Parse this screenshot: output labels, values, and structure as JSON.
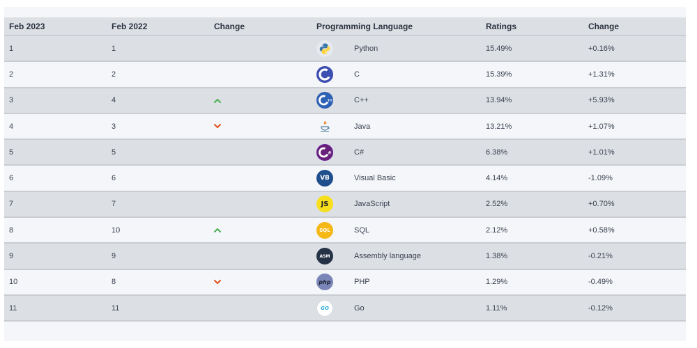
{
  "table": {
    "headers": [
      "Feb 2023",
      "Feb 2022",
      "Change",
      "Programming Language",
      "Ratings",
      "Change"
    ],
    "rows": [
      {
        "feb2023": "1",
        "feb2022": "1",
        "change_icon": "none",
        "language": "Python",
        "logo_icon": "python-logo-icon",
        "ratings": "15.49%",
        "change": "+0.16%"
      },
      {
        "feb2023": "2",
        "feb2022": "2",
        "change_icon": "none",
        "language": "C",
        "logo_icon": "c-logo-icon",
        "ratings": "15.39%",
        "change": "+1.31%"
      },
      {
        "feb2023": "3",
        "feb2022": "4",
        "change_icon": "chevron-up-icon",
        "language": "C++",
        "logo_icon": "cpp-logo-icon",
        "ratings": "13.94%",
        "change": "+5.93%"
      },
      {
        "feb2023": "4",
        "feb2022": "3",
        "change_icon": "chevron-down-icon",
        "language": "Java",
        "logo_icon": "java-logo-icon",
        "ratings": "13.21%",
        "change": "+1.07%"
      },
      {
        "feb2023": "5",
        "feb2022": "5",
        "change_icon": "none",
        "language": "C#",
        "logo_icon": "csharp-logo-icon",
        "ratings": "6.38%",
        "change": "+1.01%"
      },
      {
        "feb2023": "6",
        "feb2022": "6",
        "change_icon": "none",
        "language": "Visual Basic",
        "logo_icon": "vb-logo-icon",
        "logo_text": "VB",
        "ratings": "4.14%",
        "change": "-1.09%"
      },
      {
        "feb2023": "7",
        "feb2022": "7",
        "change_icon": "none",
        "language": "JavaScript",
        "logo_icon": "js-logo-icon",
        "logo_text": "JS",
        "ratings": "2.52%",
        "change": "+0.70%"
      },
      {
        "feb2023": "8",
        "feb2022": "10",
        "change_icon": "chevron-up-icon",
        "language": "SQL",
        "logo_icon": "sql-logo-icon",
        "logo_text": "SQL",
        "ratings": "2.12%",
        "change": "+0.58%"
      },
      {
        "feb2023": "9",
        "feb2022": "9",
        "change_icon": "none",
        "language": "Assembly language",
        "logo_icon": "asm-logo-icon",
        "logo_text": "ASM",
        "ratings": "1.38%",
        "change": "-0.21%"
      },
      {
        "feb2023": "10",
        "feb2022": "8",
        "change_icon": "chevron-down-icon",
        "language": "PHP",
        "logo_icon": "php-logo-icon",
        "logo_text": "php",
        "ratings": "1.29%",
        "change": "-0.49%"
      },
      {
        "feb2023": "11",
        "feb2022": "11",
        "change_icon": "none",
        "language": "Go",
        "logo_icon": "go-logo-icon",
        "logo_text": "GO",
        "ratings": "1.11%",
        "change": "-0.12%"
      }
    ]
  },
  "colors": {
    "up": "#4caf50",
    "down": "#e0531f",
    "header_bg": "#dcdfe4",
    "row_alt_bg": "#f4f6f9"
  }
}
